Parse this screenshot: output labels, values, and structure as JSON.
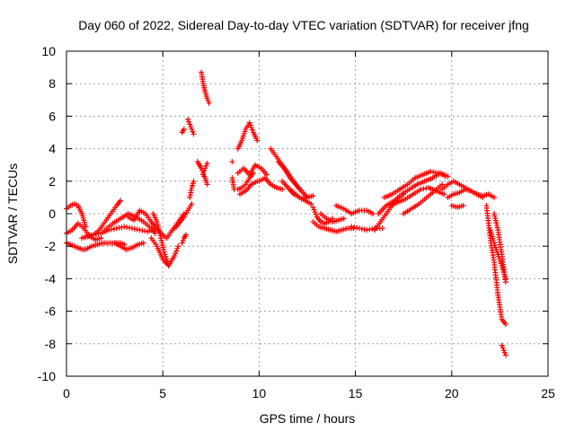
{
  "chart_data": {
    "type": "scatter",
    "title": "Day 060 of 2022, Sidereal Day-to-day VTEC variation (SDTVAR) for receiver jfng",
    "xlabel": "GPS time / hours",
    "ylabel": "SDTVAR / TECUs",
    "xlim": [
      0,
      25
    ],
    "ylim": [
      -10,
      10
    ],
    "xticks": [
      0,
      5,
      10,
      15,
      20,
      25
    ],
    "yticks": [
      -10,
      -8,
      -6,
      -4,
      -2,
      0,
      2,
      4,
      6,
      8,
      10
    ],
    "xtick_labels": [
      "0",
      "5",
      "10",
      "15",
      "20",
      "25"
    ],
    "ytick_labels": [
      "-10",
      "-8",
      "-6",
      "-4",
      "-2",
      "0",
      "2",
      "4",
      "6",
      "8",
      "10"
    ],
    "grid": true,
    "marker": "+",
    "series": [
      {
        "name": "SDTVAR",
        "color": "#ff0000",
        "tracks": [
          {
            "x": [
              0.0,
              0.2,
              0.4,
              0.6,
              0.8,
              1.0,
              1.3,
              1.6,
              1.9,
              2.2,
              2.5,
              2.8,
              3.0
            ],
            "y": [
              -1.8,
              -1.9,
              -2.0,
              -2.1,
              -2.2,
              -2.2,
              -2.0,
              -1.9,
              -1.8,
              -1.8,
              -1.8,
              -1.8,
              -1.9
            ]
          },
          {
            "x": [
              0.0,
              0.2,
              0.4,
              0.6,
              0.8,
              1.0
            ],
            "y": [
              0.3,
              0.5,
              0.6,
              0.5,
              0.0,
              -0.8
            ]
          },
          {
            "x": [
              0.0,
              0.3,
              0.6,
              0.9,
              1.2,
              1.5,
              1.8
            ],
            "y": [
              -1.2,
              -1.0,
              -0.6,
              -0.9,
              -1.4,
              -1.6,
              -1.5
            ]
          },
          {
            "x": [
              0.8,
              1.1,
              1.4,
              1.7,
              2.0,
              2.3,
              2.6,
              2.8
            ],
            "y": [
              -1.5,
              -1.4,
              -1.3,
              -1.0,
              -0.5,
              0.0,
              0.5,
              0.8
            ]
          },
          {
            "x": [
              1.0,
              1.4,
              1.8,
              2.2,
              2.6,
              3.0,
              3.4,
              3.8,
              4.2,
              4.5
            ],
            "y": [
              -1.4,
              -1.3,
              -1.2,
              -1.0,
              -0.9,
              -0.8,
              -0.9,
              -1.0,
              -1.1,
              -1.0
            ]
          },
          {
            "x": [
              2.0,
              2.4,
              2.8,
              3.2,
              3.6,
              4.0,
              4.4,
              4.6
            ],
            "y": [
              -1.0,
              -0.6,
              -0.3,
              0.0,
              -0.2,
              -0.5,
              -0.9,
              -1.2
            ]
          },
          {
            "x": [
              2.5,
              2.8,
              3.1,
              3.4,
              3.7,
              4.0
            ],
            "y": [
              -1.8,
              -2.0,
              -2.2,
              -2.1,
              -1.9,
              -1.8
            ]
          },
          {
            "x": [
              3.2,
              3.5,
              3.8,
              4.1,
              4.4,
              4.6
            ],
            "y": [
              -0.2,
              -0.4,
              0.2,
              0.0,
              -0.5,
              -0.8
            ]
          },
          {
            "x": [
              4.5,
              4.7,
              4.9,
              5.1,
              5.3
            ],
            "y": [
              0.0,
              -0.5,
              -1.5,
              -2.5,
              -3.2
            ]
          },
          {
            "x": [
              4.4,
              4.7,
              5.0,
              5.3,
              5.6,
              5.8
            ],
            "y": [
              -1.5,
              -2.0,
              -2.8,
              -3.2,
              -2.6,
              -2.0
            ]
          },
          {
            "x": [
              4.6,
              4.9,
              5.2,
              5.5,
              5.8,
              6.1
            ],
            "y": [
              -0.8,
              -1.2,
              -1.5,
              -1.0,
              -0.5,
              0.0
            ]
          },
          {
            "x": [
              5.5,
              5.7,
              5.9,
              6.1,
              6.3,
              6.5
            ],
            "y": [
              -1.0,
              -0.8,
              -0.5,
              -0.2,
              0.2,
              0.6
            ]
          },
          {
            "x": [
              6.0,
              6.1,
              6.2
            ],
            "y": [
              -1.8,
              -1.5,
              -1.3
            ]
          },
          {
            "x": [
              6.4,
              6.5,
              6.6
            ],
            "y": [
              1.0,
              1.6,
              2.0
            ]
          },
          {
            "x": [
              6.0,
              6.1
            ],
            "y": [
              5.0,
              5.2
            ]
          },
          {
            "x": [
              6.3,
              6.4,
              6.5,
              6.6
            ],
            "y": [
              5.8,
              5.5,
              5.2,
              4.9
            ]
          },
          {
            "x": [
              6.8,
              6.9,
              7.0,
              7.1,
              7.2,
              7.3
            ],
            "y": [
              3.2,
              3.0,
              2.8,
              2.5,
              2.8,
              3.1
            ]
          },
          {
            "x": [
              7.0,
              7.1,
              7.2,
              7.3,
              7.4
            ],
            "y": [
              8.7,
              8.0,
              7.5,
              7.1,
              6.8
            ]
          },
          {
            "x": [
              7.1,
              7.2,
              7.3
            ],
            "y": [
              2.4,
              2.2,
              1.8
            ]
          },
          {
            "x": [
              8.6,
              8.7
            ],
            "y": [
              2.2,
              1.5
            ]
          },
          {
            "x": [
              8.6
            ],
            "y": [
              3.2
            ]
          },
          {
            "x": [
              8.9,
              9.1,
              9.3,
              9.5,
              9.7,
              9.9
            ],
            "y": [
              4.0,
              4.5,
              5.2,
              5.6,
              5.0,
              4.5
            ]
          },
          {
            "x": [
              8.9,
              9.2,
              9.5,
              9.8,
              10.1,
              10.4
            ],
            "y": [
              2.5,
              2.8,
              2.4,
              3.0,
              2.8,
              2.4
            ]
          },
          {
            "x": [
              8.9,
              9.1,
              9.3,
              9.5,
              9.7
            ],
            "y": [
              1.5,
              1.6,
              1.8,
              2.2,
              2.5
            ]
          },
          {
            "x": [
              9.0,
              9.3,
              9.6,
              9.9
            ],
            "y": [
              1.2,
              1.4,
              1.8,
              2.0
            ]
          },
          {
            "x": [
              10.0,
              10.3,
              10.6,
              10.9,
              11.2
            ],
            "y": [
              2.0,
              2.2,
              1.8,
              1.6,
              1.5
            ]
          },
          {
            "x": [
              10.6,
              10.9,
              11.2,
              11.5,
              11.8,
              12.1
            ],
            "y": [
              4.0,
              3.5,
              3.0,
              2.5,
              2.0,
              1.5
            ]
          },
          {
            "x": [
              11.0,
              11.3,
              11.6,
              11.9,
              12.2,
              12.5
            ],
            "y": [
              3.2,
              2.8,
              2.2,
              1.8,
              1.4,
              1.0
            ]
          },
          {
            "x": [
              11.2,
              11.5,
              11.8,
              12.1,
              12.4,
              12.7
            ],
            "y": [
              2.0,
              1.6,
              1.2,
              1.0,
              0.8,
              0.6
            ]
          },
          {
            "x": [
              11.6,
              11.9,
              12.2,
              12.5,
              12.8
            ],
            "y": [
              1.5,
              1.2,
              0.9,
              1.0,
              1.1
            ]
          },
          {
            "x": [
              12.8,
              13.0,
              13.2,
              13.4,
              13.6,
              13.8
            ],
            "y": [
              0.4,
              -0.2,
              -0.5,
              -0.6,
              -0.5,
              -0.3
            ]
          },
          {
            "x": [
              12.8,
              13.1,
              13.4,
              13.7,
              14.0,
              14.3,
              14.6,
              14.9
            ],
            "y": [
              -0.5,
              -0.8,
              -0.9,
              -1.0,
              -1.1,
              -1.0,
              -0.9,
              -0.9
            ]
          },
          {
            "x": [
              13.2,
              13.5,
              13.8,
              14.1,
              14.4
            ],
            "y": [
              0.0,
              -0.3,
              -0.5,
              -0.4,
              -0.3
            ]
          },
          {
            "x": [
              14.0,
              14.4,
              14.8,
              15.2,
              15.6,
              15.9
            ],
            "y": [
              0.5,
              0.3,
              0.0,
              0.2,
              0.2,
              0.0
            ]
          },
          {
            "x": [
              14.8,
              15.2,
              15.6,
              16.0,
              16.4
            ],
            "y": [
              -0.8,
              -0.9,
              -1.0,
              -0.9,
              -0.9
            ]
          },
          {
            "x": [
              16.0,
              16.3,
              16.6,
              16.9,
              17.2,
              17.5
            ],
            "y": [
              -1.0,
              -0.5,
              0.0,
              0.5,
              0.9,
              1.2
            ]
          },
          {
            "x": [
              16.2,
              16.6,
              17.0,
              17.4,
              17.8,
              18.2,
              18.6,
              19.0,
              19.4,
              19.8
            ],
            "y": [
              0.0,
              0.5,
              0.8,
              1.2,
              1.5,
              1.8,
              2.0,
              2.2,
              2.5,
              2.3
            ]
          },
          {
            "x": [
              16.5,
              16.9,
              17.3,
              17.7,
              18.1,
              18.5,
              18.9,
              19.3,
              19.7
            ],
            "y": [
              1.0,
              1.2,
              1.5,
              1.8,
              2.2,
              2.4,
              2.6,
              2.5,
              2.3
            ]
          },
          {
            "x": [
              16.8,
              17.2,
              17.6,
              18.0,
              18.4,
              18.8,
              19.2,
              19.6
            ],
            "y": [
              0.5,
              0.7,
              0.9,
              1.2,
              1.5,
              1.6,
              1.4,
              1.2
            ]
          },
          {
            "x": [
              17.5,
              17.9,
              18.3,
              18.7,
              19.1,
              19.5
            ],
            "y": [
              0.0,
              0.3,
              0.6,
              1.0,
              1.4,
              1.8
            ]
          },
          {
            "x": [
              19.5,
              19.8,
              20.1,
              20.4,
              20.7,
              21.0,
              21.3,
              21.6
            ],
            "y": [
              1.5,
              1.8,
              2.0,
              1.8,
              1.6,
              1.4,
              1.2,
              1.0
            ]
          },
          {
            "x": [
              19.8,
              20.1,
              20.4,
              20.7,
              21.0,
              21.3,
              21.6,
              21.9,
              22.2
            ],
            "y": [
              1.0,
              1.2,
              1.3,
              1.5,
              1.4,
              1.2,
              1.1,
              1.2,
              1.0
            ]
          },
          {
            "x": [
              20.0,
              20.3,
              20.6
            ],
            "y": [
              0.5,
              0.4,
              0.5
            ]
          },
          {
            "x": [
              21.8,
              22.0,
              22.2,
              22.4,
              22.6,
              22.8
            ],
            "y": [
              0.5,
              -1.5,
              -3.0,
              -5.0,
              -6.5,
              -6.8
            ]
          },
          {
            "x": [
              22.0,
              22.2,
              22.4,
              22.6,
              22.8
            ],
            "y": [
              -1.0,
              -1.8,
              -2.5,
              -3.2,
              -4.0
            ]
          },
          {
            "x": [
              22.2,
              22.4,
              22.6,
              22.8
            ],
            "y": [
              0.0,
              -1.0,
              -2.5,
              -4.2
            ]
          },
          {
            "x": [
              22.6,
              22.7,
              22.8
            ],
            "y": [
              -8.1,
              -8.4,
              -8.7
            ]
          }
        ]
      }
    ]
  }
}
